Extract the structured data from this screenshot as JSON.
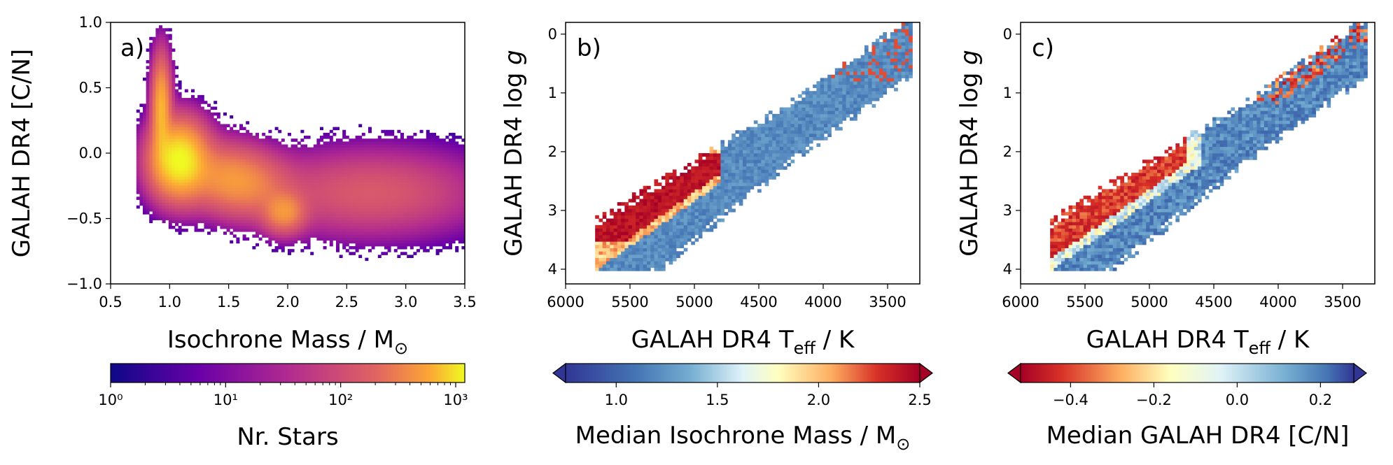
{
  "chart_data": [
    {
      "type": "heatmap",
      "panel_label": "a)",
      "xlabel": "Isochrone Mass / M",
      "xlabel_sub": "⊙",
      "ylabel": "GALAH DR4 [C/N]",
      "xlim": [
        0.5,
        3.5
      ],
      "ylim": [
        -1.0,
        1.0
      ],
      "xticks": [
        0.5,
        1.0,
        1.5,
        2.0,
        2.5,
        3.0,
        3.5
      ],
      "xtick_labels": [
        "0.5",
        "1.0",
        "1.5",
        "2.0",
        "2.5",
        "3.0",
        "3.5"
      ],
      "yticks": [
        -1.0,
        -0.5,
        0.0,
        0.5,
        1.0
      ],
      "ytick_labels": [
        "−1.0",
        "−0.5",
        "0.0",
        "0.5",
        "1.0"
      ],
      "colormap": "plasma",
      "colorbar": {
        "label": "Nr. Stars",
        "scale": "log",
        "range": [
          1,
          1200
        ],
        "ticks": [
          1,
          10,
          100,
          1000
        ],
        "tick_labels": [
          "10⁰",
          "10¹",
          "10²",
          "10³"
        ]
      },
      "density_features": [
        {
          "x": 1.05,
          "y": -0.05,
          "weight": 1.0
        },
        {
          "x": 0.92,
          "y": 0.45,
          "weight": 0.45
        },
        {
          "x": 1.55,
          "y": -0.2,
          "weight": 0.35
        },
        {
          "x": 1.95,
          "y": -0.45,
          "weight": 0.3
        },
        {
          "x": 2.6,
          "y": -0.3,
          "weight": 0.1
        }
      ]
    },
    {
      "type": "heatmap",
      "panel_label": "b)",
      "xlabel": "GALAH DR4 T",
      "xlabel_sub": "eff",
      "xlabel_unit": " / K",
      "ylabel": "GALAH DR4 log",
      "ylabel_var": "g",
      "xlim": [
        6000,
        3250
      ],
      "ylim": [
        4.25,
        -0.2
      ],
      "xticks": [
        6000,
        5500,
        5000,
        4500,
        4000,
        3500
      ],
      "xtick_labels": [
        "6000",
        "5500",
        "5000",
        "4500",
        "4000",
        "3500"
      ],
      "yticks": [
        0,
        1,
        2,
        3,
        4
      ],
      "ytick_labels": [
        "0",
        "1",
        "2",
        "3",
        "4"
      ],
      "colormap": "RdYlBu_r",
      "colorbar": {
        "label": "Median Isochrone Mass / M",
        "label_sub": "⊙",
        "range": [
          0.75,
          2.5
        ],
        "ticks": [
          1.0,
          1.5,
          2.0,
          2.5
        ],
        "tick_labels": [
          "1.0",
          "1.5",
          "2.0",
          "2.5"
        ],
        "extend": "both"
      }
    },
    {
      "type": "heatmap",
      "panel_label": "c)",
      "xlabel": "GALAH DR4 T",
      "xlabel_sub": "eff",
      "xlabel_unit": " / K",
      "ylabel": "GALAH DR4 log",
      "ylabel_var": "g",
      "xlim": [
        6000,
        3250
      ],
      "ylim": [
        4.25,
        -0.2
      ],
      "xticks": [
        6000,
        5500,
        5000,
        4500,
        4000,
        3500
      ],
      "xtick_labels": [
        "6000",
        "5500",
        "5000",
        "4500",
        "4000",
        "3500"
      ],
      "yticks": [
        0,
        1,
        2,
        3,
        4
      ],
      "ytick_labels": [
        "0",
        "1",
        "2",
        "3",
        "4"
      ],
      "colormap": "RdYlBu",
      "colorbar": {
        "label": "Median GALAH DR4 [C/N]",
        "range": [
          -0.52,
          0.28
        ],
        "ticks": [
          -0.4,
          -0.2,
          0.0,
          0.2
        ],
        "tick_labels": [
          "−0.4",
          "−0.2",
          "0.0",
          "0.2"
        ],
        "extend": "both"
      }
    }
  ]
}
